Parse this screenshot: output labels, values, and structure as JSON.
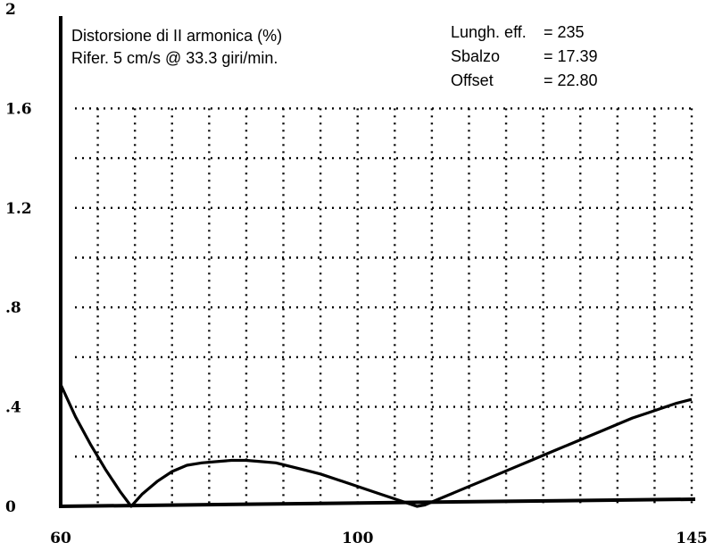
{
  "chart_data": {
    "type": "line",
    "title": "Distorsione di II armonica (%)",
    "subtitle": "Rifer. 5 cm/s @ 33.3 giri/min.",
    "params": [
      {
        "label": "Lungh. eff.",
        "value": "= 235"
      },
      {
        "label": "Sbalzo",
        "value": "= 17.39"
      },
      {
        "label": "Offset",
        "value": "= 22.80"
      }
    ],
    "xlim": [
      60,
      145
    ],
    "ylim": [
      0,
      2
    ],
    "x_ticks": [
      {
        "value": 60,
        "label": "60"
      },
      {
        "value": 100,
        "label": "100"
      },
      {
        "value": 145,
        "label": "145"
      }
    ],
    "y_ticks": [
      {
        "value": 0,
        "label": "0"
      },
      {
        "value": 0.4,
        "label": ".4"
      },
      {
        "value": 0.8,
        "label": ".8"
      },
      {
        "value": 1.2,
        "label": "1.2"
      },
      {
        "value": 1.6,
        "label": "1.6"
      },
      {
        "value": 2,
        "label": "2"
      }
    ],
    "grid": true,
    "series": [
      {
        "x": [
          60,
          62,
          64,
          66,
          68,
          69.5,
          71,
          73,
          75,
          77,
          79,
          81,
          83,
          85,
          87,
          89,
          91,
          93,
          95,
          97,
          99,
          101,
          103,
          105,
          107,
          108,
          109,
          111,
          113,
          115,
          117,
          119,
          121,
          123,
          125,
          127,
          129,
          131,
          133,
          135,
          137,
          139,
          141,
          143,
          145
        ],
        "y": [
          0.49,
          0.36,
          0.25,
          0.15,
          0.06,
          0.0,
          0.05,
          0.1,
          0.14,
          0.165,
          0.175,
          0.18,
          0.185,
          0.185,
          0.18,
          0.175,
          0.16,
          0.145,
          0.13,
          0.11,
          0.09,
          0.07,
          0.05,
          0.03,
          0.01,
          0.0,
          0.005,
          0.03,
          0.055,
          0.08,
          0.105,
          0.13,
          0.155,
          0.18,
          0.205,
          0.23,
          0.255,
          0.28,
          0.305,
          0.33,
          0.355,
          0.375,
          0.395,
          0.415,
          0.43
        ]
      }
    ]
  }
}
